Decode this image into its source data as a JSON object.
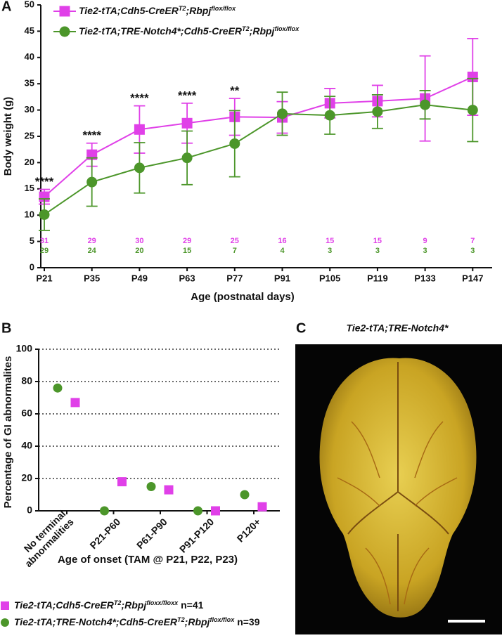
{
  "chart_data": [
    {
      "type": "line",
      "panel_label": "A",
      "xlabel": "Age (postnatal days)",
      "ylabel": "Body weight (g)",
      "categories": [
        "P21",
        "P35",
        "P49",
        "P63",
        "P77",
        "P91",
        "P105",
        "P119",
        "P133",
        "P147"
      ],
      "ylim": [
        0,
        50
      ],
      "yticks": [
        0,
        5,
        10,
        15,
        20,
        25,
        30,
        35,
        40,
        45,
        50
      ],
      "significance": [
        "****",
        "****",
        "****",
        "****",
        "**",
        null,
        null,
        null,
        null,
        null
      ],
      "series": [
        {
          "name": [
            {
              "text": "Tie2-tTA;Cdh5-CreER"
            },
            {
              "text": "T2",
              "sup": true
            },
            {
              "text": ";Rbpj"
            },
            {
              "text": "flox/flox",
              "sup": true
            }
          ],
          "color": "#e040e8",
          "marker": "square",
          "values": [
            13.5,
            21.5,
            26.3,
            27.5,
            28.7,
            28.6,
            31.3,
            31.7,
            32.2,
            36.3
          ],
          "errors": [
            1.4,
            2.2,
            4.5,
            3.8,
            3.5,
            3.0,
            2.8,
            3.0,
            8.1,
            7.3
          ],
          "n": [
            31,
            29,
            30,
            29,
            25,
            16,
            15,
            15,
            9,
            7
          ]
        },
        {
          "name": [
            {
              "text": "Tie2-tTA;TRE-Notch4*;Cdh5-CreER"
            },
            {
              "text": "T2",
              "sup": true
            },
            {
              "text": ";Rbpj"
            },
            {
              "text": "flox/flox",
              "sup": true
            }
          ],
          "color": "#4c962a",
          "marker": "circle",
          "values": [
            10.1,
            16.3,
            19.0,
            20.9,
            23.6,
            29.3,
            29.0,
            29.7,
            31.0,
            30.0
          ],
          "errors": [
            3.0,
            4.6,
            4.8,
            5.1,
            6.3,
            4.1,
            3.6,
            3.2,
            2.7,
            6.0
          ],
          "n": [
            29,
            24,
            20,
            15,
            7,
            4,
            3,
            3,
            3,
            3
          ]
        }
      ]
    },
    {
      "type": "scatter",
      "panel_label": "B",
      "xlabel": "Age of onset (TAM @ P21, P22, P23)",
      "ylabel": "Percentage of GI abnormalites",
      "categories": [
        [
          "No terminal",
          "abnormalities"
        ],
        [
          "P21-P60"
        ],
        [
          "P61-P90"
        ],
        [
          "P91-P120"
        ],
        [
          "P120+"
        ]
      ],
      "ylim": [
        0,
        100
      ],
      "yticks": [
        0,
        20,
        40,
        60,
        80,
        100
      ],
      "grid": true,
      "series": [
        {
          "name": [
            {
              "text": "Tie2-tTA;Cdh5-CreER"
            },
            {
              "text": "T2",
              "sup": true
            },
            {
              "text": ";Rbpj"
            },
            {
              "text": "floxx/floxx",
              "sup": true
            },
            {
              "text": " n=41",
              "upright": true
            }
          ],
          "color": "#e040e8",
          "marker": "square",
          "values": [
            67,
            18,
            13,
            0,
            2.5
          ]
        },
        {
          "name": [
            {
              "text": "Tie2-tTA;TRE-Notch4*;Cdh5-CreER"
            },
            {
              "text": "T2",
              "sup": true
            },
            {
              "text": ";Rbpj"
            },
            {
              "text": "flox/flox",
              "sup": true
            },
            {
              "text": " n=39",
              "upright": true
            }
          ],
          "color": "#4c962a",
          "marker": "circle",
          "values": [
            76,
            0,
            15,
            0,
            10
          ]
        }
      ]
    },
    {
      "type": "image",
      "panel_label": "C",
      "title": "Tie2-tTA;TRE-Notch4*"
    }
  ]
}
